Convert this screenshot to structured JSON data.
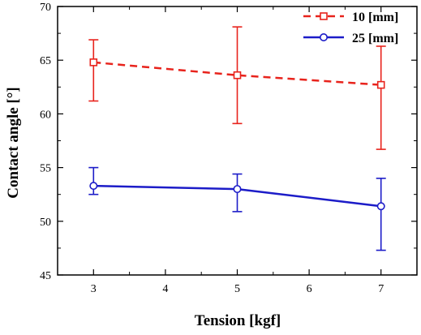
{
  "chart_data": {
    "type": "line",
    "title": "",
    "xlabel": "Tension [kgf]",
    "ylabel": "Contact angle [°]",
    "xlim": [
      2.5,
      7.5
    ],
    "ylim": [
      45,
      70
    ],
    "xticks": [
      3,
      4,
      5,
      6,
      7
    ],
    "yticks": [
      45,
      50,
      55,
      60,
      65,
      70
    ],
    "x": [
      3,
      5,
      7
    ],
    "grid": false,
    "legend_position": "top-right",
    "series": [
      {
        "name": "10 [mm]",
        "color": "#e8231c",
        "line_style": "dashed",
        "marker": "square",
        "values": [
          64.8,
          63.6,
          62.7
        ],
        "error_low": [
          61.2,
          59.1,
          56.7
        ],
        "error_high": [
          66.9,
          68.1,
          66.3
        ]
      },
      {
        "name": "25 [mm]",
        "color": "#1c1cc8",
        "line_style": "solid",
        "marker": "circle",
        "values": [
          53.3,
          53.0,
          51.4
        ],
        "error_low": [
          52.5,
          50.9,
          47.3
        ],
        "error_high": [
          55.0,
          54.4,
          54.0
        ]
      }
    ]
  }
}
